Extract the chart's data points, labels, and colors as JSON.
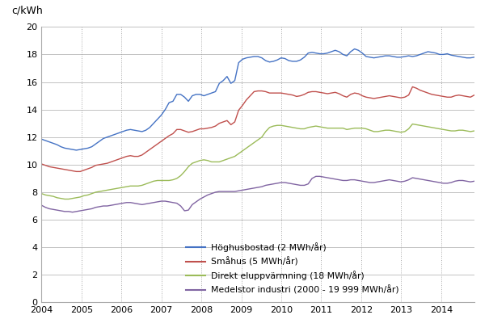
{
  "ylabel": "c/kWh",
  "ylim": [
    0,
    20
  ],
  "yticks": [
    0,
    2,
    4,
    6,
    8,
    10,
    12,
    14,
    16,
    18,
    20
  ],
  "xlim_start": 2004.0,
  "xlim_end": 2014.83,
  "xtick_labels": [
    "2004",
    "2005",
    "2006",
    "2007",
    "2008",
    "2009",
    "2010",
    "2011",
    "2012",
    "2013",
    "2014"
  ],
  "xtick_positions": [
    2004,
    2005,
    2006,
    2007,
    2008,
    2009,
    2010,
    2011,
    2012,
    2013,
    2014
  ],
  "colors": {
    "hoghus": "#4472C4",
    "smahus": "#C0504D",
    "direkt": "#9BBB59",
    "medel": "#8064A2"
  },
  "legend": [
    "Höghusbostad (2 MWh/år)",
    "Småhus (5 MWh/år)",
    "Direkt eluppvärmning (18 MWh/år)",
    "Medelstor industri (2000 - 19 999 MWh/år)"
  ],
  "hoghus": [
    11.85,
    11.75,
    11.65,
    11.55,
    11.45,
    11.3,
    11.2,
    11.15,
    11.1,
    11.05,
    11.1,
    11.15,
    11.2,
    11.3,
    11.5,
    11.7,
    11.9,
    12.0,
    12.1,
    12.2,
    12.3,
    12.4,
    12.5,
    12.55,
    12.5,
    12.45,
    12.4,
    12.5,
    12.7,
    13.0,
    13.3,
    13.6,
    14.0,
    14.5,
    14.6,
    15.1,
    15.1,
    14.9,
    14.6,
    15.0,
    15.1,
    15.1,
    15.0,
    15.1,
    15.2,
    15.3,
    15.9,
    16.1,
    16.4,
    15.9,
    16.1,
    17.4,
    17.65,
    17.75,
    17.8,
    17.85,
    17.85,
    17.75,
    17.55,
    17.45,
    17.5,
    17.6,
    17.75,
    17.7,
    17.55,
    17.5,
    17.5,
    17.6,
    17.8,
    18.1,
    18.15,
    18.1,
    18.05,
    18.05,
    18.1,
    18.2,
    18.3,
    18.2,
    18.0,
    17.9,
    18.2,
    18.4,
    18.3,
    18.1,
    17.85,
    17.8,
    17.75,
    17.8,
    17.85,
    17.9,
    17.9,
    17.85,
    17.8,
    17.8,
    17.85,
    17.9,
    17.85,
    17.9,
    18.0,
    18.1,
    18.2,
    18.15,
    18.1,
    18.0,
    18.0,
    18.05,
    17.95,
    17.9,
    17.85,
    17.8,
    17.75,
    17.75,
    17.8
  ],
  "smahus": [
    10.05,
    9.95,
    9.85,
    9.8,
    9.75,
    9.7,
    9.65,
    9.6,
    9.55,
    9.5,
    9.5,
    9.6,
    9.7,
    9.8,
    9.95,
    10.0,
    10.05,
    10.1,
    10.2,
    10.3,
    10.4,
    10.5,
    10.6,
    10.65,
    10.6,
    10.6,
    10.7,
    10.9,
    11.1,
    11.3,
    11.5,
    11.7,
    11.9,
    12.1,
    12.25,
    12.55,
    12.55,
    12.45,
    12.35,
    12.4,
    12.5,
    12.6,
    12.6,
    12.65,
    12.7,
    12.8,
    13.0,
    13.1,
    13.2,
    12.9,
    13.1,
    13.95,
    14.3,
    14.7,
    15.0,
    15.3,
    15.35,
    15.35,
    15.3,
    15.2,
    15.2,
    15.2,
    15.2,
    15.15,
    15.1,
    15.05,
    14.95,
    15.0,
    15.1,
    15.25,
    15.3,
    15.3,
    15.25,
    15.2,
    15.15,
    15.2,
    15.25,
    15.15,
    15.0,
    14.9,
    15.1,
    15.2,
    15.15,
    15.0,
    14.9,
    14.85,
    14.8,
    14.85,
    14.9,
    14.95,
    15.0,
    14.95,
    14.9,
    14.85,
    14.9,
    15.05,
    15.65,
    15.55,
    15.4,
    15.3,
    15.2,
    15.1,
    15.05,
    15.0,
    14.95,
    14.9,
    14.9,
    15.0,
    15.05,
    15.0,
    14.95,
    14.9,
    15.05
  ],
  "direkt": [
    7.9,
    7.8,
    7.75,
    7.7,
    7.6,
    7.55,
    7.5,
    7.5,
    7.55,
    7.6,
    7.65,
    7.75,
    7.8,
    7.9,
    8.0,
    8.05,
    8.1,
    8.15,
    8.2,
    8.25,
    8.3,
    8.35,
    8.4,
    8.45,
    8.45,
    8.45,
    8.5,
    8.6,
    8.7,
    8.8,
    8.85,
    8.85,
    8.85,
    8.85,
    8.9,
    9.0,
    9.2,
    9.5,
    9.85,
    10.1,
    10.2,
    10.3,
    10.35,
    10.3,
    10.2,
    10.2,
    10.2,
    10.3,
    10.4,
    10.5,
    10.6,
    10.8,
    11.0,
    11.2,
    11.4,
    11.6,
    11.8,
    12.0,
    12.4,
    12.7,
    12.8,
    12.85,
    12.85,
    12.8,
    12.75,
    12.7,
    12.65,
    12.6,
    12.6,
    12.7,
    12.75,
    12.8,
    12.75,
    12.7,
    12.65,
    12.65,
    12.65,
    12.65,
    12.65,
    12.55,
    12.6,
    12.65,
    12.65,
    12.65,
    12.6,
    12.5,
    12.4,
    12.4,
    12.45,
    12.5,
    12.5,
    12.45,
    12.4,
    12.35,
    12.4,
    12.6,
    12.95,
    12.9,
    12.85,
    12.8,
    12.75,
    12.7,
    12.65,
    12.6,
    12.55,
    12.5,
    12.45,
    12.45,
    12.5,
    12.5,
    12.45,
    12.4,
    12.45
  ],
  "medel": [
    7.05,
    6.9,
    6.8,
    6.75,
    6.7,
    6.65,
    6.6,
    6.6,
    6.55,
    6.6,
    6.65,
    6.7,
    6.75,
    6.8,
    6.9,
    6.95,
    7.0,
    7.0,
    7.05,
    7.1,
    7.15,
    7.2,
    7.25,
    7.25,
    7.2,
    7.15,
    7.1,
    7.15,
    7.2,
    7.25,
    7.3,
    7.35,
    7.35,
    7.3,
    7.25,
    7.2,
    7.0,
    6.65,
    6.7,
    7.1,
    7.3,
    7.5,
    7.65,
    7.8,
    7.9,
    8.0,
    8.05,
    8.05,
    8.05,
    8.05,
    8.05,
    8.1,
    8.15,
    8.2,
    8.25,
    8.3,
    8.35,
    8.4,
    8.5,
    8.55,
    8.6,
    8.65,
    8.7,
    8.7,
    8.65,
    8.6,
    8.55,
    8.5,
    8.5,
    8.6,
    9.0,
    9.15,
    9.15,
    9.1,
    9.05,
    9.0,
    8.95,
    8.9,
    8.85,
    8.85,
    8.9,
    8.9,
    8.85,
    8.8,
    8.75,
    8.7,
    8.7,
    8.75,
    8.8,
    8.85,
    8.9,
    8.85,
    8.8,
    8.75,
    8.8,
    8.9,
    9.05,
    9.0,
    8.95,
    8.9,
    8.85,
    8.8,
    8.75,
    8.7,
    8.65,
    8.65,
    8.7,
    8.8,
    8.85,
    8.85,
    8.8,
    8.75,
    8.8
  ]
}
